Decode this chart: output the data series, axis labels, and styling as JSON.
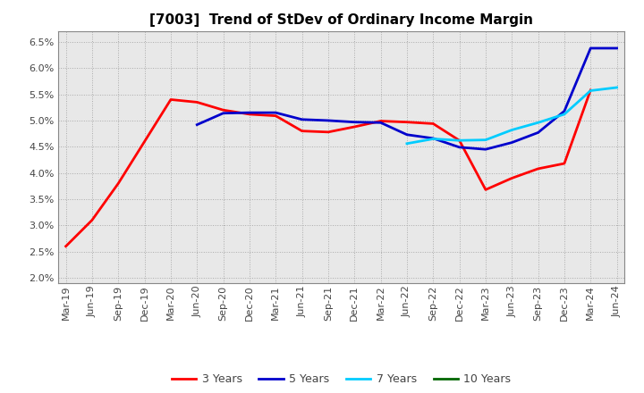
{
  "title": "[7003]  Trend of StDev of Ordinary Income Margin",
  "x_labels": [
    "Mar-19",
    "Jun-19",
    "Sep-19",
    "Dec-19",
    "Mar-20",
    "Jun-20",
    "Sep-20",
    "Dec-20",
    "Mar-21",
    "Jun-21",
    "Sep-21",
    "Dec-21",
    "Mar-22",
    "Jun-22",
    "Sep-22",
    "Dec-22",
    "Mar-23",
    "Jun-23",
    "Sep-23",
    "Dec-23",
    "Mar-24",
    "Jun-24"
  ],
  "y_ticks": [
    0.02,
    0.025,
    0.03,
    0.035,
    0.04,
    0.045,
    0.05,
    0.055,
    0.06,
    0.065
  ],
  "y_min": 0.019,
  "y_max": 0.067,
  "series": [
    {
      "label": "3 Years",
      "color": "#ff0000",
      "values": [
        0.026,
        0.031,
        0.038,
        0.046,
        0.054,
        0.0535,
        0.052,
        0.0512,
        0.0509,
        0.048,
        0.0478,
        0.0488,
        0.0499,
        0.0497,
        0.0494,
        0.0462,
        0.0368,
        0.039,
        0.0408,
        0.0418,
        0.0558,
        null
      ]
    },
    {
      "label": "5 Years",
      "color": "#0000cc",
      "values": [
        null,
        null,
        null,
        null,
        null,
        0.0492,
        0.0514,
        0.0515,
        0.0515,
        0.0502,
        0.05,
        0.0497,
        0.0496,
        0.0473,
        0.0466,
        0.0449,
        0.0445,
        0.0458,
        0.0477,
        0.0518,
        0.0638,
        0.0638
      ]
    },
    {
      "label": "7 Years",
      "color": "#00ccff",
      "values": [
        null,
        null,
        null,
        null,
        null,
        null,
        null,
        null,
        null,
        null,
        null,
        null,
        null,
        0.0456,
        0.0465,
        0.0462,
        0.0463,
        0.0482,
        0.0496,
        0.0512,
        0.0557,
        0.0563
      ]
    },
    {
      "label": "10 Years",
      "color": "#006600",
      "values": [
        null,
        null,
        null,
        null,
        null,
        null,
        null,
        null,
        null,
        null,
        null,
        null,
        null,
        null,
        null,
        null,
        null,
        null,
        null,
        null,
        null,
        null
      ]
    }
  ],
  "background_color": "#ffffff",
  "plot_bg_color": "#e8e8e8",
  "grid_color": "#aaaaaa",
  "title_fontsize": 11,
  "tick_fontsize": 8,
  "legend_fontsize": 9,
  "linewidth": 2.0
}
